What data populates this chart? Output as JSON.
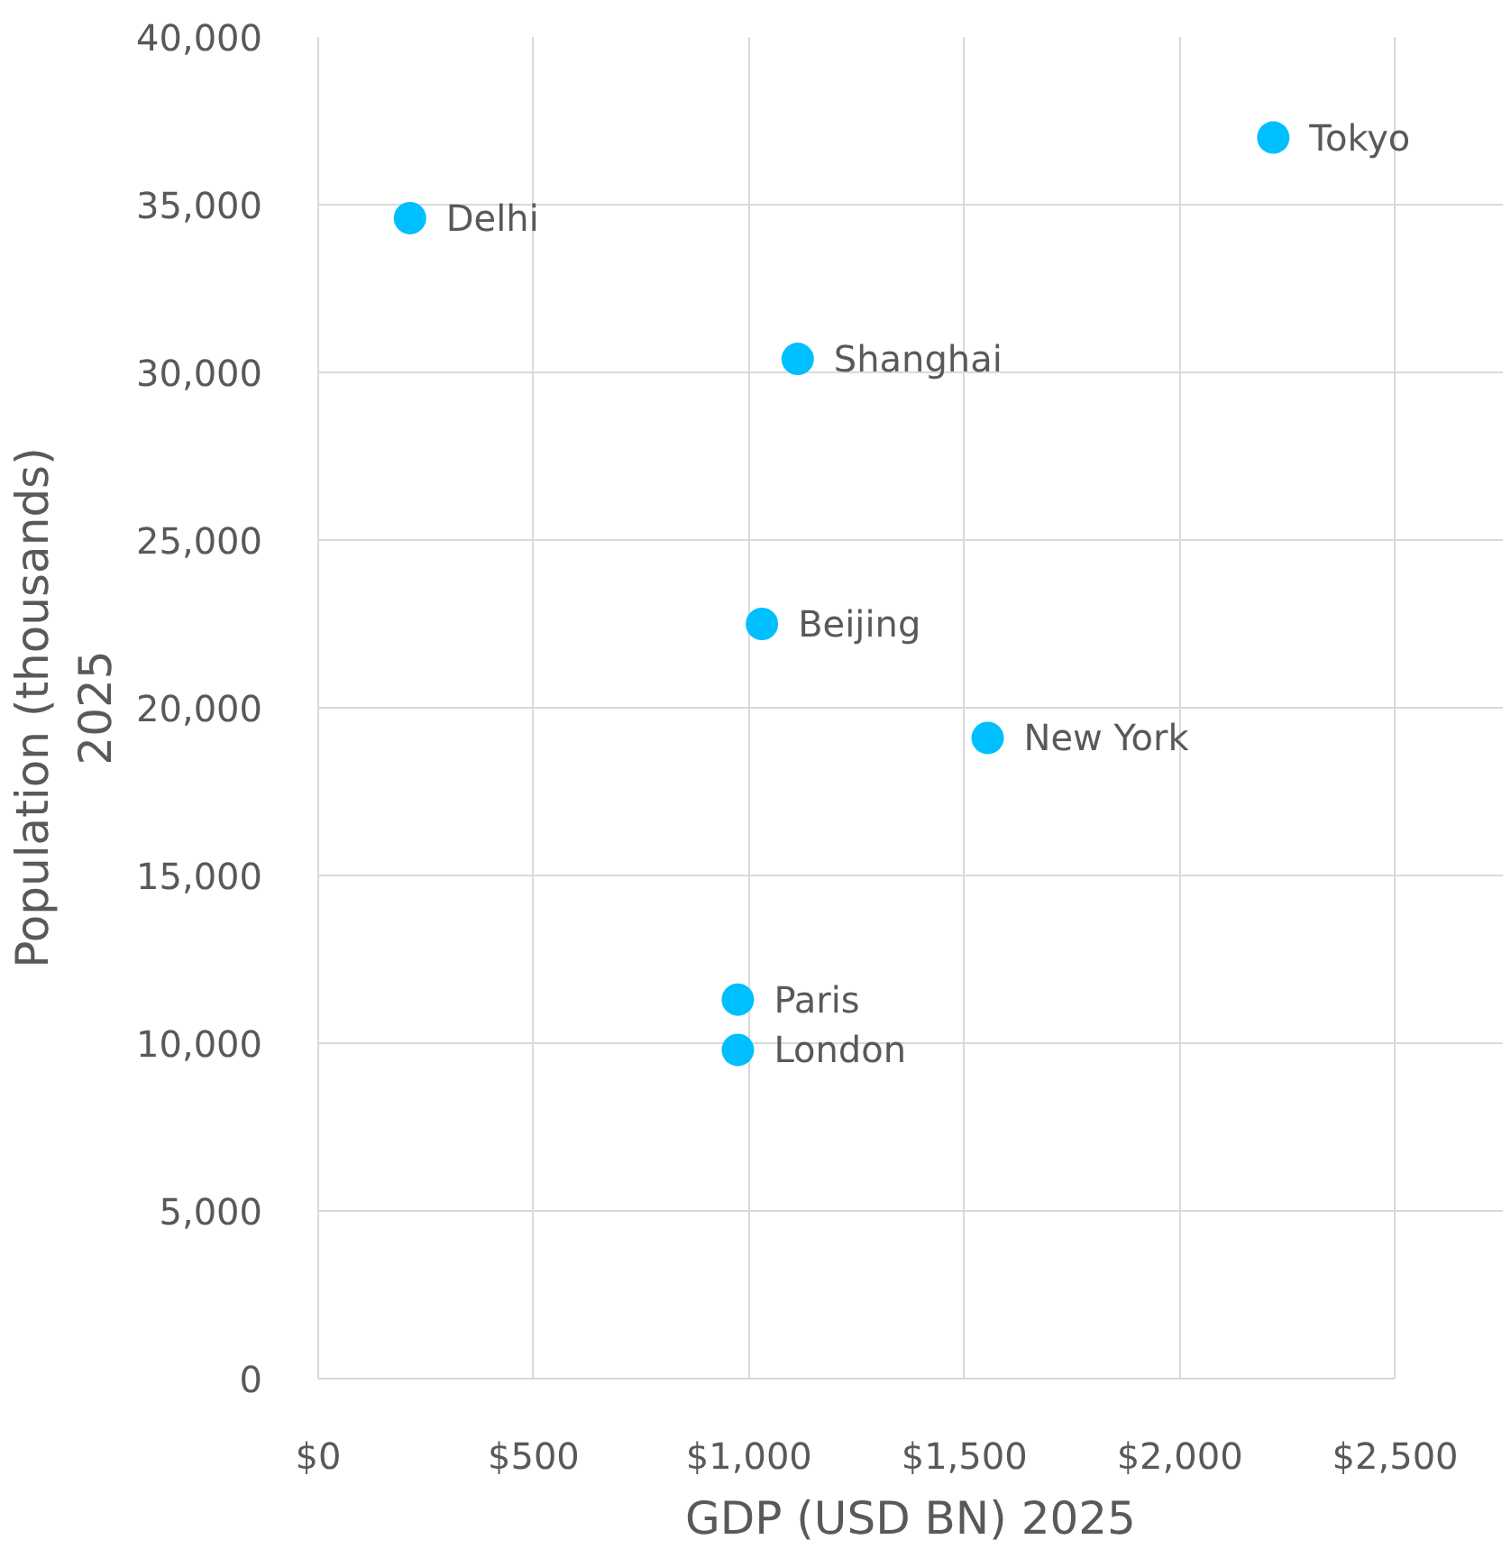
{
  "chart_data": {
    "type": "scatter",
    "xlabel": "GDP (USD BN) 2025",
    "ylabel": "Population (thousands)\n2025",
    "x": [
      213,
      2217,
      1113,
      1030,
      1554,
      974,
      974
    ],
    "series": [
      {
        "color": "#00bfff",
        "values": [
          34600,
          37000,
          30400,
          22500,
          19100,
          11300,
          9800
        ]
      }
    ],
    "annotations": [
      {
        "text": "Delhi",
        "x": 213,
        "y": 34600
      },
      {
        "text": "Tokyo",
        "x": 2217,
        "y": 37000
      },
      {
        "text": "Shanghai",
        "x": 1113,
        "y": 30400
      },
      {
        "text": "Beijing",
        "x": 1030,
        "y": 22500
      },
      {
        "text": "New York",
        "x": 1554,
        "y": 19100
      },
      {
        "text": "Paris",
        "x": 974,
        "y": 11300
      },
      {
        "text": "London",
        "x": 974,
        "y": 9800
      }
    ],
    "xlim": [
      0,
      2500
    ],
    "xticks": [
      {
        "value": 0,
        "label": "$0"
      },
      {
        "value": 500,
        "label": "$500"
      },
      {
        "value": 1000,
        "label": "$1,000"
      },
      {
        "value": 1500,
        "label": "$1,500"
      },
      {
        "value": 2000,
        "label": "$2,000"
      },
      {
        "value": 2500,
        "label": "$2,500"
      }
    ],
    "ylim": [
      0,
      40000
    ],
    "yticks": [
      {
        "value": 0,
        "label": "0"
      },
      {
        "value": 5000,
        "label": "5,000"
      },
      {
        "value": 10000,
        "label": "10,000"
      },
      {
        "value": 15000,
        "label": "15,000"
      },
      {
        "value": 20000,
        "label": "20,000"
      },
      {
        "value": 25000,
        "label": "25,000"
      },
      {
        "value": 30000,
        "label": "30,000"
      },
      {
        "value": 35000,
        "label": "35,000"
      },
      {
        "value": 40000,
        "label": "40,000"
      }
    ],
    "grid": true,
    "marker": "circle"
  }
}
